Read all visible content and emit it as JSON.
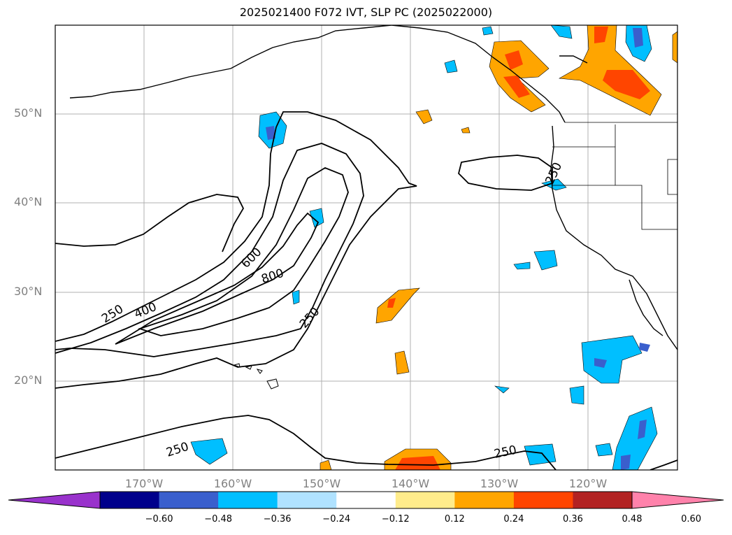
{
  "title": "2025021400 F072 IVT, SLP PC (2025022000)",
  "lat_labels": [
    {
      "text": "50°N",
      "lat": 50
    },
    {
      "text": "40°N",
      "lat": 40
    },
    {
      "text": "30°N",
      "lat": 30
    },
    {
      "text": "20°N",
      "lat": 20
    }
  ],
  "lon_labels": [
    {
      "text": "170°W",
      "lon": -170
    },
    {
      "text": "160°W",
      "lon": -160
    },
    {
      "text": "150°W",
      "lon": -150
    },
    {
      "text": "140°W",
      "lon": -140
    },
    {
      "text": "130°W",
      "lon": -130
    },
    {
      "text": "120°W",
      "lon": -120
    }
  ],
  "contour_labels": [
    "250",
    "400",
    "600",
    "800",
    "250",
    "250",
    "250",
    "250"
  ],
  "colorbar": {
    "ticks": [
      "−0.60",
      "−0.48",
      "−0.36",
      "−0.24",
      "−0.12",
      "0.12",
      "0.24",
      "0.36",
      "0.48",
      "0.60"
    ],
    "colors": [
      "#9932cc",
      "#00008b",
      "#3a5fcd",
      "#00bfff",
      "#b0e2ff",
      "#ffffff",
      "#ffec8b",
      "#ffa500",
      "#ff4500",
      "#b22222",
      "#ff82ab"
    ]
  }
}
